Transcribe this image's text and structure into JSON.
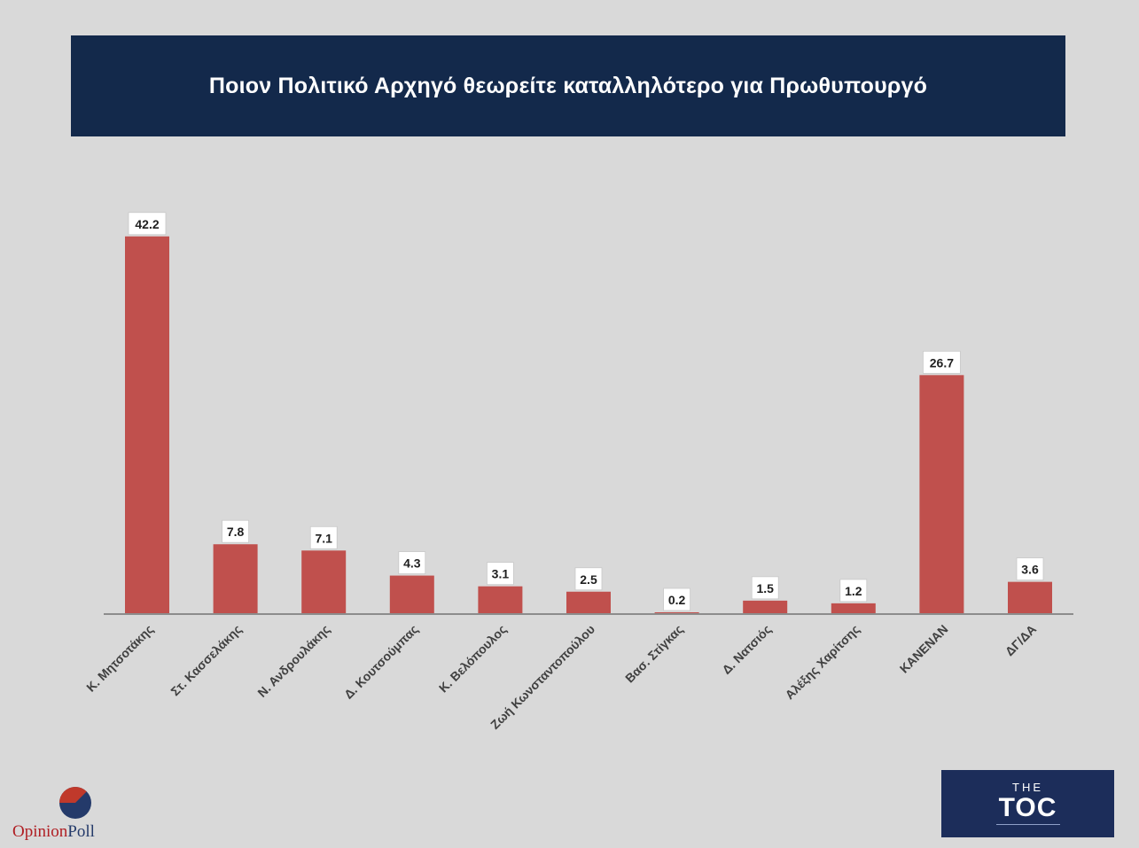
{
  "title": "Ποιον Πολιτικό Αρχηγό θεωρείτε καταλληλότερο για Πρωθυπουργό",
  "chart_data": {
    "type": "bar",
    "categories": [
      "Κ. Μητσοτάκης",
      "Στ. Κασσελάκης",
      "Ν. Ανδρουλάκης",
      "Δ. Κουτσούμπας",
      "Κ. Βελόπουλος",
      "Ζωή Κωνσταντοπούλου",
      "Βασ. Στίγκας",
      "Δ. Νατσιός",
      "Αλέξης Χαρίτσης",
      "ΚΑΝΕΝΑΝ",
      "ΔΓ/ΔΑ"
    ],
    "values": [
      42.2,
      7.8,
      7.1,
      4.3,
      3.1,
      2.5,
      0.2,
      1.5,
      1.2,
      26.7,
      3.6
    ],
    "data_labels": [
      "42.2",
      "7.8",
      "7.1",
      "4.3",
      "3.1",
      "2.5",
      "0.2",
      "1.5",
      "1.2",
      "26.7",
      "3.6"
    ],
    "bar_color": "#c0504d",
    "ylim": [
      0,
      45
    ],
    "grid": false,
    "legend": "none"
  },
  "logos": {
    "opinionpoll": {
      "text_part1": "Opinion",
      "text_part2": "Poll",
      "color_red": "#b01e23",
      "color_blue": "#243a6a"
    },
    "thetoc": {
      "line1": "THE",
      "line2": "TOC",
      "background": "#1c2d5a"
    }
  }
}
